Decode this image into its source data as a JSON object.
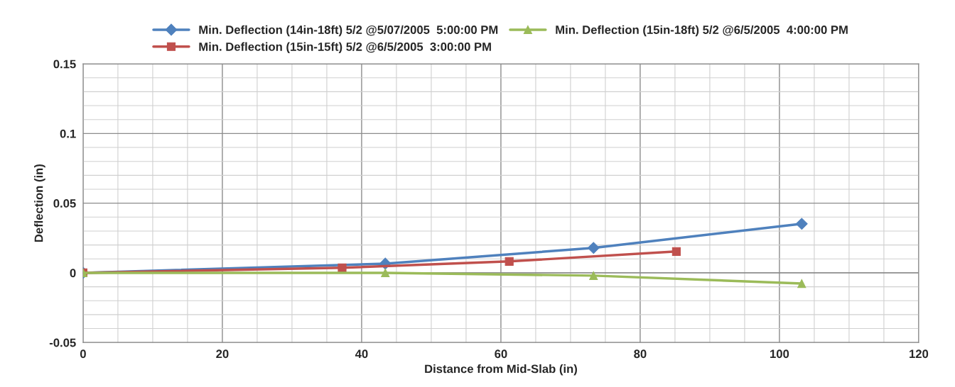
{
  "chart_data": {
    "type": "line",
    "xlabel": "Distance from Mid-Slab (in)",
    "ylabel": "Deflection (in)",
    "xlim": [
      0,
      120
    ],
    "xticks": [
      0,
      20,
      40,
      60,
      80,
      100,
      120
    ],
    "ylim": [
      -0.05,
      0.15
    ],
    "yticks": [
      -0.05,
      0,
      0.05,
      0.1,
      0.15
    ],
    "grid": true,
    "legend": "top",
    "series": [
      {
        "name": "Min. Deflection (14in-18ft) 5/2 @5/07/2005  5:00:00 PM",
        "color": "#4f81bd",
        "marker": "diamond",
        "x": [
          0,
          43.4,
          73.3,
          103.2
        ],
        "values": [
          0,
          0.0066,
          0.0179,
          0.0352
        ]
      },
      {
        "name": "Min. Deflection (15in-15ft) 5/2 @6/5/2005  3:00:00 PM",
        "color": "#c0504d",
        "marker": "square",
        "x": [
          0,
          37.2,
          61.2,
          85.2
        ],
        "values": [
          0,
          0.0036,
          0.0082,
          0.0153
        ]
      },
      {
        "name": "Min. Deflection (15in-18ft) 5/2 @6/5/2005  4:00:00 PM",
        "color": "#9bbb59",
        "marker": "triangle",
        "x": [
          0,
          43.4,
          73.3,
          103.2
        ],
        "values": [
          0,
          0,
          -0.002,
          -0.0077
        ]
      }
    ]
  }
}
